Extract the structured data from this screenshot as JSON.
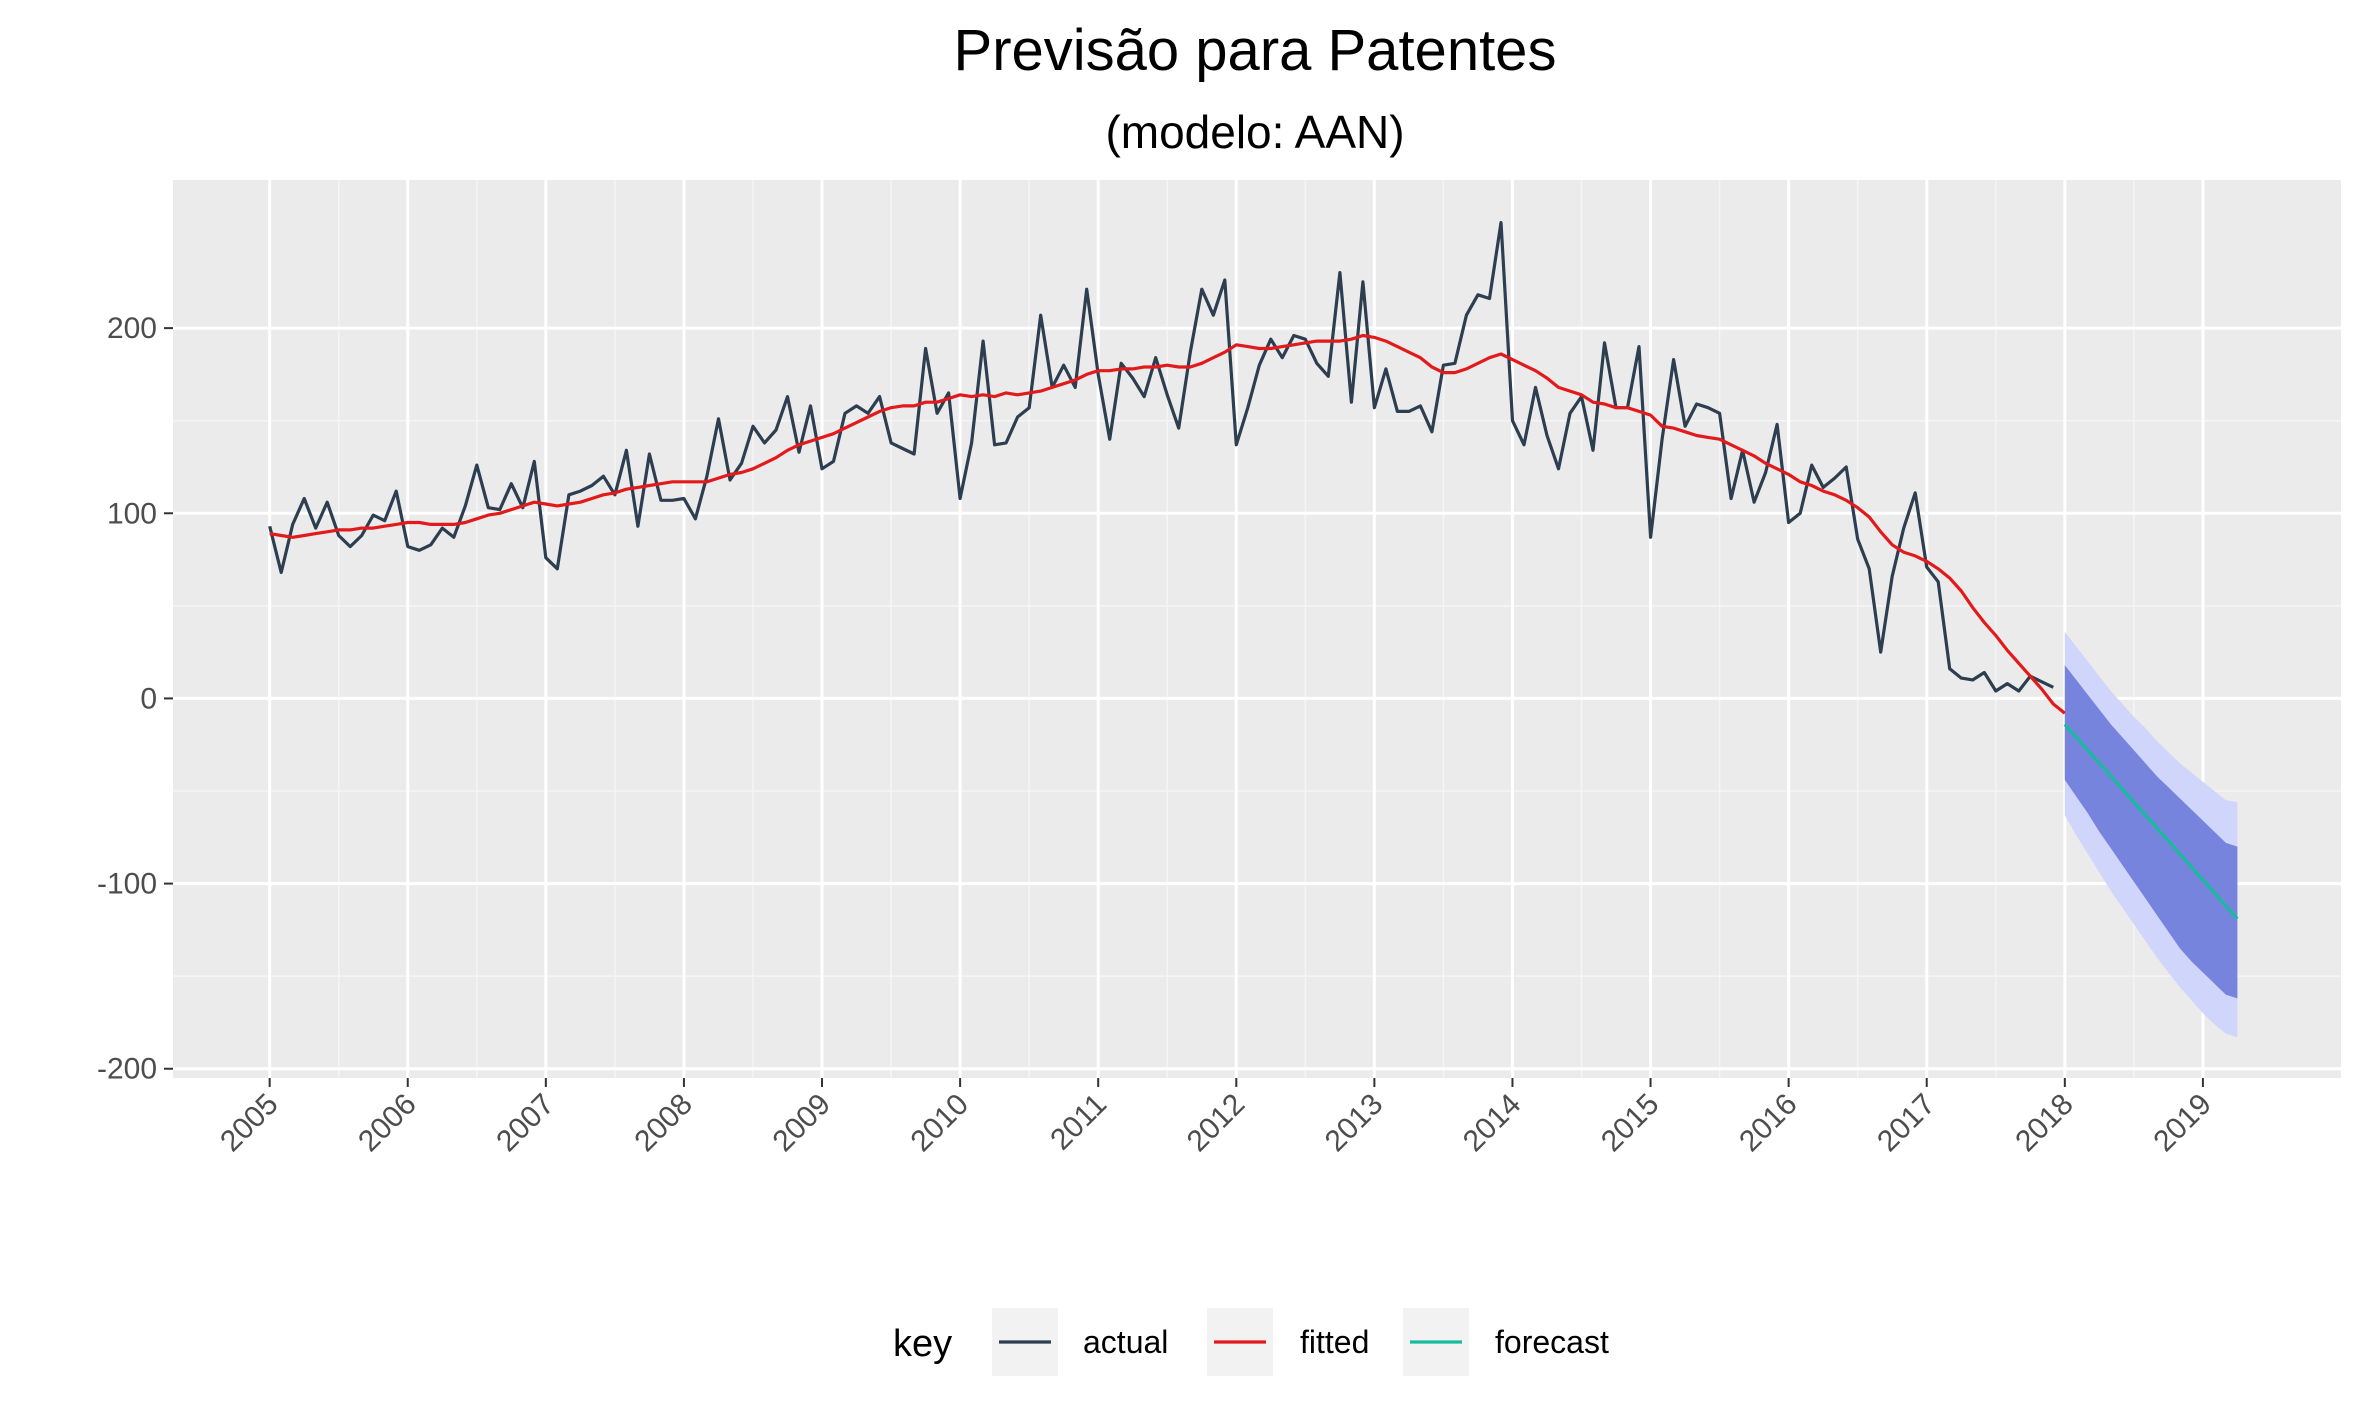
{
  "chart_data": {
    "type": "line",
    "title": "Previsão para Patentes",
    "subtitle": "(modelo: AAN)",
    "xlabel": "",
    "ylabel": "",
    "xlim": [
      2004.3,
      2020.0
    ],
    "ylim": [
      -205,
      280
    ],
    "x_ticks": [
      "2005",
      "2006",
      "2007",
      "2008",
      "2009",
      "2010",
      "2011",
      "2012",
      "2013",
      "2014",
      "2015",
      "2016",
      "2017",
      "2018",
      "2019"
    ],
    "y_ticks": [
      200,
      100,
      0,
      -100,
      -200
    ],
    "grid": true,
    "legend": {
      "position": "bottom",
      "title": "key",
      "entries": [
        {
          "label": "actual",
          "color": "#2c3e50"
        },
        {
          "label": "fitted",
          "color": "#e31a1c"
        },
        {
          "label": "forecast",
          "color": "#18bc9c"
        }
      ]
    },
    "series": [
      {
        "name": "actual",
        "color": "#2c3e50",
        "start": 2005.0,
        "step": 0.08333333,
        "values": [
          93,
          68,
          94,
          108,
          92,
          106,
          88,
          82,
          88,
          99,
          96,
          112,
          82,
          80,
          83,
          92,
          87,
          104,
          126,
          103,
          102,
          116,
          103,
          128,
          76,
          70,
          110,
          112,
          115,
          120,
          110,
          134,
          93,
          132,
          107,
          107,
          108,
          97,
          120,
          151,
          118,
          127,
          147,
          138,
          145,
          163,
          133,
          158,
          124,
          128,
          154,
          158,
          154,
          163,
          138,
          135,
          132,
          189,
          154,
          165,
          108,
          138,
          193,
          137,
          138,
          152,
          157,
          207,
          168,
          180,
          168,
          221,
          175,
          140,
          181,
          173,
          163,
          184,
          164,
          146,
          187,
          221,
          207,
          226,
          137,
          157,
          180,
          194,
          184,
          196,
          194,
          181,
          174,
          230,
          160,
          225,
          157,
          178,
          155,
          155,
          158,
          144,
          180,
          181,
          207,
          218,
          216,
          257,
          150,
          137,
          168,
          142,
          124,
          154,
          163,
          134,
          192,
          157,
          157,
          190,
          87,
          140,
          183,
          147,
          159,
          157,
          154,
          108,
          134,
          106,
          122,
          148,
          95,
          100,
          126,
          114,
          119,
          125,
          86,
          70,
          25,
          66,
          92,
          111,
          71,
          63,
          16,
          11,
          10,
          14,
          4,
          8,
          4,
          12,
          9,
          6
        ]
      },
      {
        "name": "fitted",
        "color": "#e31a1c",
        "start": 2005.0,
        "step": 0.08333333,
        "values": [
          89,
          88,
          87,
          88,
          89,
          90,
          91,
          91,
          92,
          92,
          93,
          94,
          95,
          95,
          94,
          94,
          94,
          95,
          97,
          99,
          100,
          102,
          104,
          106,
          105,
          104,
          105,
          106,
          108,
          110,
          111,
          113,
          114,
          115,
          116,
          117,
          117,
          117,
          117,
          119,
          121,
          122,
          124,
          127,
          130,
          134,
          137,
          139,
          141,
          143,
          146,
          149,
          152,
          155,
          157,
          158,
          158,
          160,
          160,
          162,
          164,
          163,
          164,
          163,
          165,
          164,
          165,
          166,
          168,
          170,
          172,
          175,
          177,
          177,
          178,
          178,
          179,
          179,
          180,
          179,
          179,
          181,
          184,
          187,
          191,
          190,
          189,
          189,
          190,
          191,
          192,
          193,
          193,
          193,
          194,
          196,
          195,
          193,
          190,
          187,
          184,
          179,
          176,
          176,
          178,
          181,
          184,
          186,
          183,
          180,
          177,
          173,
          168,
          166,
          164,
          160,
          159,
          157,
          157,
          155,
          153,
          147,
          146,
          144,
          142,
          141,
          140,
          137,
          134,
          131,
          127,
          124,
          121,
          117,
          115,
          112,
          110,
          107,
          103,
          98,
          90,
          83,
          79,
          77,
          74,
          70,
          65,
          58,
          49,
          41,
          34,
          26,
          19,
          12,
          5,
          -3,
          -8
        ]
      },
      {
        "name": "forecast",
        "color": "#18bc9c",
        "start": 2018.0,
        "step": 0.08333333,
        "values": [
          -14,
          -21,
          -28,
          -35,
          -42,
          -49,
          -56,
          -63,
          -70,
          -77,
          -84,
          -91,
          -98,
          -105,
          -112,
          -119
        ],
        "lo80": [
          -44,
          -53,
          -62,
          -72,
          -81,
          -90,
          -99,
          -108,
          -117,
          -126,
          -135,
          -142,
          -148,
          -154,
          -160,
          -162
        ],
        "hi80": [
          18,
          10,
          2,
          -6,
          -14,
          -21,
          -28,
          -35,
          -42,
          -48,
          -54,
          -60,
          -66,
          -72,
          -78,
          -80
        ],
        "lo95": [
          -63,
          -74,
          -84,
          -94,
          -104,
          -113,
          -122,
          -131,
          -140,
          -148,
          -156,
          -163,
          -170,
          -176,
          -181,
          -183
        ],
        "hi95": [
          36,
          28,
          20,
          12,
          4,
          -3,
          -10,
          -16,
          -23,
          -29,
          -35,
          -40,
          -45,
          -50,
          -55,
          -56
        ]
      }
    ]
  },
  "colors": {
    "panel": "#ebebeb",
    "grid_major": "#ffffff",
    "grid_minor": "#f5f5f5",
    "band80": "#7784dd",
    "band95": "#d0d6fb"
  }
}
